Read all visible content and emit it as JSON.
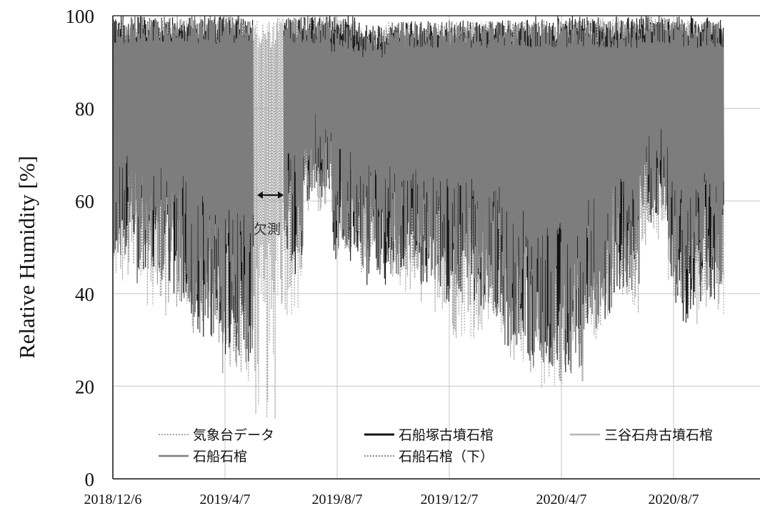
{
  "chart_data": {
    "type": "line",
    "title": "",
    "xlabel": "",
    "ylabel": "Relative Humidity [%]",
    "ylim": [
      0,
      100
    ],
    "yticks": [
      0,
      20,
      40,
      60,
      80,
      100
    ],
    "xticks": [
      "2018/12/6",
      "2019/4/7",
      "2019/8/7",
      "2019/12/7",
      "2020/4/7",
      "2020/8/7"
    ],
    "grid": true,
    "legend": {
      "placement": "bottom"
    },
    "annotation": {
      "text": "欠測"
    },
    "series": [
      {
        "name": "気象台データ",
        "style": "dotted",
        "color": "#a8a8a8",
        "monthly_range": [
          {
            "month": "2018-12",
            "min": 40,
            "max": 97
          },
          {
            "month": "2019-01",
            "min": 37,
            "max": 98
          },
          {
            "month": "2019-02",
            "min": 35,
            "max": 99
          },
          {
            "month": "2019-03",
            "min": 30,
            "max": 99
          },
          {
            "month": "2019-04",
            "min": 22,
            "max": 100
          },
          {
            "month": "2019-05",
            "min": 12,
            "max": 99
          },
          {
            "month": "2019-06",
            "min": 35,
            "max": 100
          },
          {
            "month": "2019-07",
            "min": 55,
            "max": 100
          },
          {
            "month": "2019-08",
            "min": 48,
            "max": 99
          },
          {
            "month": "2019-09",
            "min": 45,
            "max": 98
          },
          {
            "month": "2019-10",
            "min": 38,
            "max": 99
          },
          {
            "month": "2019-11",
            "min": 36,
            "max": 98
          },
          {
            "month": "2019-12",
            "min": 30,
            "max": 99
          },
          {
            "month": "2020-01",
            "min": 30,
            "max": 99
          },
          {
            "month": "2020-02",
            "min": 25,
            "max": 99
          },
          {
            "month": "2020-03",
            "min": 18,
            "max": 98
          },
          {
            "month": "2020-04",
            "min": 20,
            "max": 99
          },
          {
            "month": "2020-05",
            "min": 30,
            "max": 100
          },
          {
            "month": "2020-06",
            "min": 35,
            "max": 100
          },
          {
            "month": "2020-07",
            "min": 50,
            "max": 100
          },
          {
            "month": "2020-08",
            "min": 38,
            "max": 99
          },
          {
            "month": "2020-09",
            "min": 33,
            "max": 99
          }
        ]
      },
      {
        "name": "石船塚古墳石棺",
        "style": "solid",
        "color": "#111111",
        "monthly_range": [
          {
            "month": "2018-12",
            "min": 50,
            "max": 100
          },
          {
            "month": "2019-01",
            "min": 45,
            "max": 100
          },
          {
            "month": "2019-02",
            "min": 40,
            "max": 100
          },
          {
            "month": "2019-03",
            "min": 30,
            "max": 100
          },
          {
            "month": "2019-04",
            "min": 26,
            "max": 100
          },
          {
            "month": "2019-05",
            "min": 25,
            "max": 100
          },
          {
            "month": "2019-06",
            "min": 44,
            "max": 100
          },
          {
            "month": "2019-07",
            "min": 60,
            "max": 100
          },
          {
            "month": "2019-08",
            "min": 47,
            "max": 100
          },
          {
            "month": "2019-09",
            "min": 41,
            "max": 98
          },
          {
            "month": "2019-10",
            "min": 45,
            "max": 99
          },
          {
            "month": "2019-11",
            "min": 40,
            "max": 99
          },
          {
            "month": "2019-12",
            "min": 38,
            "max": 99
          },
          {
            "month": "2020-01",
            "min": 36,
            "max": 99
          },
          {
            "month": "2020-02",
            "min": 30,
            "max": 99
          },
          {
            "month": "2020-03",
            "min": 25,
            "max": 100
          },
          {
            "month": "2020-04",
            "min": 22,
            "max": 100
          },
          {
            "month": "2020-05",
            "min": 33,
            "max": 100
          },
          {
            "month": "2020-06",
            "min": 40,
            "max": 100
          },
          {
            "month": "2020-07",
            "min": 55,
            "max": 100
          },
          {
            "month": "2020-08",
            "min": 33,
            "max": 100
          },
          {
            "month": "2020-09",
            "min": 38,
            "max": 100
          }
        ]
      },
      {
        "name": "三谷石舟古墳石棺",
        "style": "solid",
        "color": "#b4b4b4",
        "monthly_range": [
          {
            "month": "2018-12",
            "min": 48,
            "max": 98
          },
          {
            "month": "2019-01",
            "min": 44,
            "max": 98
          },
          {
            "month": "2019-02",
            "min": 40,
            "max": 99
          },
          {
            "month": "2019-03",
            "min": 33,
            "max": 99
          },
          {
            "month": "2019-04",
            "min": 27,
            "max": 99
          },
          {
            "month": "2019-05",
            "min": 26,
            "max": 97
          },
          {
            "month": "2019-06",
            "min": 50,
            "max": 99
          },
          {
            "month": "2019-07",
            "min": 62,
            "max": 100
          },
          {
            "month": "2019-08",
            "min": 52,
            "max": 100
          },
          {
            "month": "2019-09",
            "min": 48,
            "max": 97
          },
          {
            "month": "2019-10",
            "min": 48,
            "max": 97
          },
          {
            "month": "2019-11",
            "min": 44,
            "max": 97
          },
          {
            "month": "2019-12",
            "min": 40,
            "max": 98
          },
          {
            "month": "2020-01",
            "min": 38,
            "max": 98
          },
          {
            "month": "2020-02",
            "min": 32,
            "max": 98
          },
          {
            "month": "2020-03",
            "min": 26,
            "max": 99
          },
          {
            "month": "2020-04",
            "min": 22,
            "max": 99
          },
          {
            "month": "2020-05",
            "min": 35,
            "max": 99
          },
          {
            "month": "2020-06",
            "min": 42,
            "max": 99
          },
          {
            "month": "2020-07",
            "min": 58,
            "max": 100
          },
          {
            "month": "2020-08",
            "min": 40,
            "max": 99
          },
          {
            "month": "2020-09",
            "min": 40,
            "max": 99
          }
        ]
      },
      {
        "name": "石船石棺",
        "style": "solid",
        "color": "#7d7d7d",
        "monthly_range": [
          {
            "month": "2018-12",
            "min": 48,
            "max": 100
          },
          {
            "month": "2019-01",
            "min": 42,
            "max": 100
          },
          {
            "month": "2019-02",
            "min": 38,
            "max": 100
          },
          {
            "month": "2019-03",
            "min": 30,
            "max": 100
          },
          {
            "month": "2019-04",
            "min": 24,
            "max": 100
          },
          {
            "month": "2019-05",
            "min": 26,
            "max": 100
          },
          {
            "month": "2019-06",
            "min": 47,
            "max": 100
          },
          {
            "month": "2019-07",
            "min": 62,
            "max": 100
          },
          {
            "month": "2019-08",
            "min": 50,
            "max": 98
          },
          {
            "month": "2019-09",
            "min": 44,
            "max": 97
          },
          {
            "month": "2019-10",
            "min": 44,
            "max": 99
          },
          {
            "month": "2019-11",
            "min": 41,
            "max": 99
          },
          {
            "month": "2019-12",
            "min": 38,
            "max": 99
          },
          {
            "month": "2020-01",
            "min": 34,
            "max": 99
          },
          {
            "month": "2020-02",
            "min": 28,
            "max": 99
          },
          {
            "month": "2020-03",
            "min": 24,
            "max": 99
          },
          {
            "month": "2020-04",
            "min": 20,
            "max": 99
          },
          {
            "month": "2020-05",
            "min": 32,
            "max": 99
          },
          {
            "month": "2020-06",
            "min": 40,
            "max": 99
          },
          {
            "month": "2020-07",
            "min": 56,
            "max": 100
          },
          {
            "month": "2020-08",
            "min": 38,
            "max": 99
          },
          {
            "month": "2020-09",
            "min": 40,
            "max": 99
          }
        ]
      },
      {
        "name": "石船石棺（下）",
        "style": "dotted",
        "color": "#8a8a8a",
        "monthly_range": [
          {
            "month": "2018-12",
            "min": 46,
            "max": 99
          },
          {
            "month": "2019-01",
            "min": 41,
            "max": 99
          },
          {
            "month": "2019-02",
            "min": 37,
            "max": 100
          },
          {
            "month": "2019-03",
            "min": 29,
            "max": 100
          },
          {
            "month": "2019-04",
            "min": 22,
            "max": 100
          },
          {
            "month": "2019-05",
            "min": 25,
            "max": 99
          },
          {
            "month": "2019-06",
            "min": 45,
            "max": 100
          },
          {
            "month": "2019-07",
            "min": 60,
            "max": 100
          },
          {
            "month": "2019-08",
            "min": 49,
            "max": 98
          },
          {
            "month": "2019-09",
            "min": 43,
            "max": 97
          },
          {
            "month": "2019-10",
            "min": 42,
            "max": 99
          },
          {
            "month": "2019-11",
            "min": 40,
            "max": 99
          },
          {
            "month": "2019-12",
            "min": 36,
            "max": 99
          },
          {
            "month": "2020-01",
            "min": 33,
            "max": 99
          },
          {
            "month": "2020-02",
            "min": 27,
            "max": 99
          },
          {
            "month": "2020-03",
            "min": 23,
            "max": 99
          },
          {
            "month": "2020-04",
            "min": 19,
            "max": 99
          },
          {
            "month": "2020-05",
            "min": 31,
            "max": 99
          },
          {
            "month": "2020-06",
            "min": 39,
            "max": 99
          },
          {
            "month": "2020-07",
            "min": 55,
            "max": 100
          },
          {
            "month": "2020-08",
            "min": 36,
            "max": 99
          },
          {
            "month": "2020-09",
            "min": 38,
            "max": 99
          }
        ]
      }
    ]
  }
}
